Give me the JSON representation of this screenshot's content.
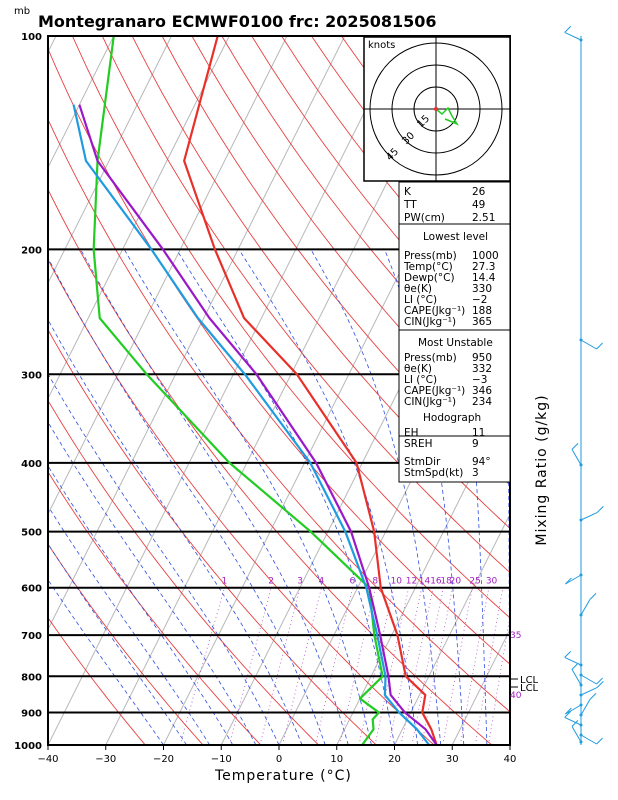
{
  "title": "Montegranaro ECMWF0100 frc: 2025081506",
  "pressure_unit": "mb",
  "xaxis_title": "Temperature (°C)",
  "right_axis_title": "Mixing Ratio (g/kg)",
  "hodograph": {
    "unit_label": "knots",
    "ring_labels": [
      "15",
      "30",
      "45"
    ]
  },
  "lcl_labels": [
    "LCL",
    "LCL"
  ],
  "index_table": {
    "summary": [
      [
        "K",
        "26"
      ],
      [
        "TT",
        "49"
      ],
      [
        "PW(cm)",
        "2.51"
      ]
    ],
    "lowest_level_title": "Lowest level",
    "lowest_level": [
      [
        "Press(mb)",
        "1000"
      ],
      [
        "Temp(°C)",
        "27.3"
      ],
      [
        "Dewp(°C)",
        "14.4"
      ],
      [
        "θe(K)",
        "330"
      ],
      [
        "LI  (°C)",
        "−2"
      ],
      [
        "CAPE(Jkg⁻¹)",
        "188"
      ],
      [
        "CIN(Jkg⁻¹)",
        "365"
      ]
    ],
    "most_unstable_title": "Most Unstable",
    "most_unstable": [
      [
        "Press(mb)",
        "950"
      ],
      [
        "θe(K)",
        "332"
      ],
      [
        "LI  (°C)",
        "−3"
      ],
      [
        "CAPE(Jkg⁻¹)",
        "346"
      ],
      [
        "CIN(Jkg⁻¹)",
        "234"
      ]
    ],
    "hodograph_title": "Hodograph",
    "hodograph": [
      [
        "EH",
        "11"
      ],
      [
        "SREH",
        "9"
      ]
    ],
    "storm": [
      [
        "StmDir",
        "94°"
      ],
      [
        "StmSpd(kt)",
        "3"
      ]
    ]
  },
  "chart_data": {
    "type": "line",
    "chart_kind": "skew-T log-P diagram",
    "xlim": [
      -40,
      40
    ],
    "ylim": [
      1000,
      100
    ],
    "y_log_scale": true,
    "x_ticks": [
      -40,
      -30,
      -20,
      -10,
      0,
      10,
      20,
      30,
      40
    ],
    "y_ticks": [
      100,
      200,
      300,
      400,
      500,
      600,
      700,
      800,
      900,
      1000
    ],
    "mixing_ratio_labels": [
      "1",
      "2",
      "3",
      "4",
      "6",
      "8",
      "10",
      "12",
      "14",
      "16",
      "18",
      "20",
      "25",
      "30",
      "35",
      "40"
    ],
    "series": [
      {
        "color": "#e8302a",
        "p": [
          1000,
          950,
          900,
          850,
          800,
          700,
          600,
          500,
          400,
          300,
          250,
          200,
          150,
          100
        ],
        "values": [
          27.3,
          25,
          22,
          21,
          16,
          11,
          4,
          -2,
          -11,
          -29,
          -43,
          -54,
          -67,
          -72
        ]
      },
      {
        "color": "#22cc22",
        "p": [
          1000,
          950,
          920,
          900,
          860,
          800,
          700,
          600,
          500,
          400,
          300,
          250,
          200,
          150,
          100
        ],
        "values": [
          14.4,
          15,
          14,
          14.5,
          10,
          12,
          7,
          2,
          -13,
          -33,
          -55,
          -68,
          -75,
          -82,
          -90
        ]
      },
      {
        "color": "#9a18c8",
        "p": [
          1000,
          950,
          900,
          850,
          800,
          700,
          600,
          500,
          400,
          300,
          250,
          200,
          150,
          125
        ],
        "values": [
          27.3,
          24,
          19,
          15,
          13,
          8,
          2,
          -6,
          -18,
          -36,
          -49,
          -63,
          -82,
          -90
        ]
      },
      {
        "color": "#1f9be0",
        "p": [
          1000,
          950,
          900,
          850,
          800,
          700,
          600,
          500,
          400,
          300,
          250,
          200,
          150,
          125
        ],
        "values": [
          26,
          22.5,
          18,
          14,
          12.5,
          7.5,
          1.5,
          -7,
          -19,
          -38,
          -51,
          -65,
          -84,
          -91
        ]
      }
    ],
    "wind_barbs": "right margin profile, light winds (mostly 5-15 kt)"
  }
}
